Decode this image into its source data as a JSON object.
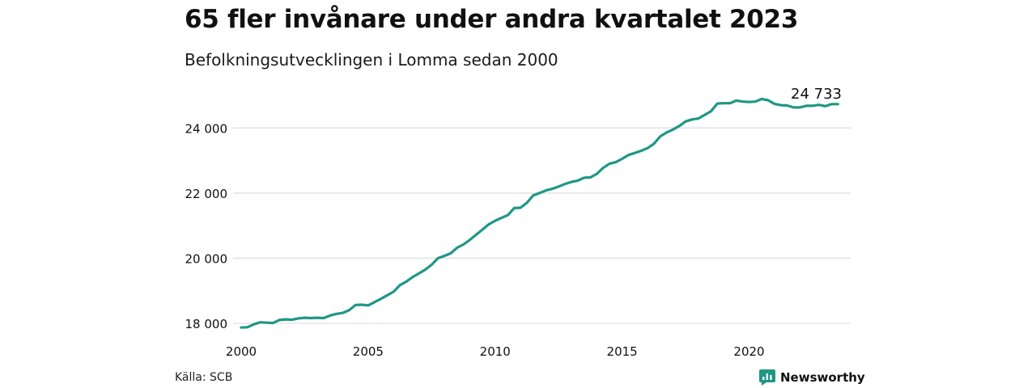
{
  "chart_data": {
    "type": "line",
    "title": "65 fler invånare under andra kvartalet 2023",
    "subtitle": "Befolkningsutvecklingen i Lomma sedan 2000",
    "xlabel": "",
    "ylabel": "",
    "xlim": [
      2000,
      2024
    ],
    "ylim": [
      17850,
      25000
    ],
    "x_ticks": [
      2000,
      2005,
      2010,
      2015,
      2020
    ],
    "x_tick_labels": [
      "2000",
      "2005",
      "2010",
      "2015",
      "2020"
    ],
    "y_ticks": [
      18000,
      20000,
      22000,
      24000
    ],
    "y_tick_labels": [
      "18 000",
      "20 000",
      "22 000",
      "24 000"
    ],
    "grid": true,
    "annotation": "24 733",
    "series": [
      {
        "color": "#1f9785",
        "x": [
          2000.0,
          2000.25,
          2000.5,
          2000.75,
          2001.0,
          2001.25,
          2001.5,
          2001.75,
          2002.0,
          2002.25,
          2002.5,
          2002.75,
          2003.0,
          2003.25,
          2003.5,
          2003.75,
          2004.0,
          2004.25,
          2004.5,
          2004.75,
          2005.0,
          2005.25,
          2005.5,
          2005.75,
          2006.0,
          2006.25,
          2006.5,
          2006.75,
          2007.0,
          2007.25,
          2007.5,
          2007.75,
          2008.0,
          2008.25,
          2008.5,
          2008.75,
          2009.0,
          2009.25,
          2009.5,
          2009.75,
          2010.0,
          2010.25,
          2010.5,
          2010.75,
          2011.0,
          2011.25,
          2011.5,
          2011.75,
          2012.0,
          2012.25,
          2012.5,
          2012.75,
          2013.0,
          2013.25,
          2013.5,
          2013.75,
          2014.0,
          2014.25,
          2014.5,
          2014.75,
          2015.0,
          2015.25,
          2015.5,
          2015.75,
          2016.0,
          2016.25,
          2016.5,
          2016.75,
          2017.0,
          2017.25,
          2017.5,
          2017.75,
          2018.0,
          2018.25,
          2018.5,
          2018.75,
          2019.0,
          2019.25,
          2019.5,
          2019.75,
          2020.0,
          2020.25,
          2020.5,
          2020.75,
          2021.0,
          2021.25,
          2021.5,
          2021.75,
          2022.0,
          2022.25,
          2022.5,
          2022.75,
          2023.0,
          2023.25,
          2023.5
        ],
        "values": [
          17870,
          17880,
          17970,
          18030,
          18020,
          18010,
          18100,
          18120,
          18110,
          18150,
          18170,
          18160,
          18170,
          18160,
          18240,
          18290,
          18320,
          18400,
          18560,
          18570,
          18550,
          18650,
          18750,
          18860,
          18970,
          19170,
          19280,
          19420,
          19530,
          19650,
          19800,
          20000,
          20070,
          20150,
          20320,
          20420,
          20560,
          20720,
          20880,
          21040,
          21150,
          21240,
          21320,
          21540,
          21550,
          21700,
          21930,
          22000,
          22080,
          22130,
          22200,
          22280,
          22340,
          22380,
          22470,
          22480,
          22590,
          22770,
          22900,
          22950,
          23050,
          23170,
          23230,
          23300,
          23380,
          23510,
          23740,
          23860,
          23950,
          24060,
          24200,
          24260,
          24290,
          24400,
          24510,
          24750,
          24760,
          24760,
          24840,
          24810,
          24800,
          24810,
          24890,
          24850,
          24740,
          24700,
          24690,
          24630,
          24630,
          24680,
          24680,
          24710,
          24670,
          24733,
          24733
        ]
      }
    ]
  },
  "source": "Källa: SCB",
  "brand": "Newsworthy",
  "colors": {
    "line": "#1f9785",
    "grid": "#dddddd",
    "brand": "#1f9785"
  }
}
